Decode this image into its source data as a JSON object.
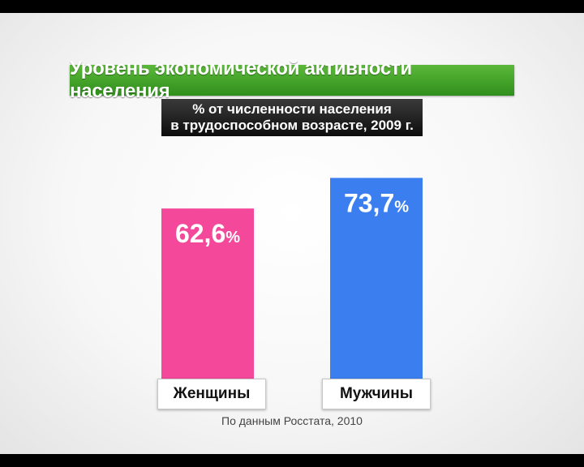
{
  "title": "Уровень экономической активности населения",
  "subtitle_line1": "% от численности населения",
  "subtitle_line2": "в трудоспособном возрасте, 2009 г.",
  "source": "По данным Росстата, 2010",
  "chart_data": {
    "type": "bar",
    "categories": [
      "Женщины",
      "Мужчины"
    ],
    "values": [
      62.6,
      73.7
    ],
    "value_labels": [
      "62,6",
      "73,7"
    ],
    "unit": "%",
    "colors": [
      "#f4489a",
      "#3a7ef0"
    ]
  }
}
